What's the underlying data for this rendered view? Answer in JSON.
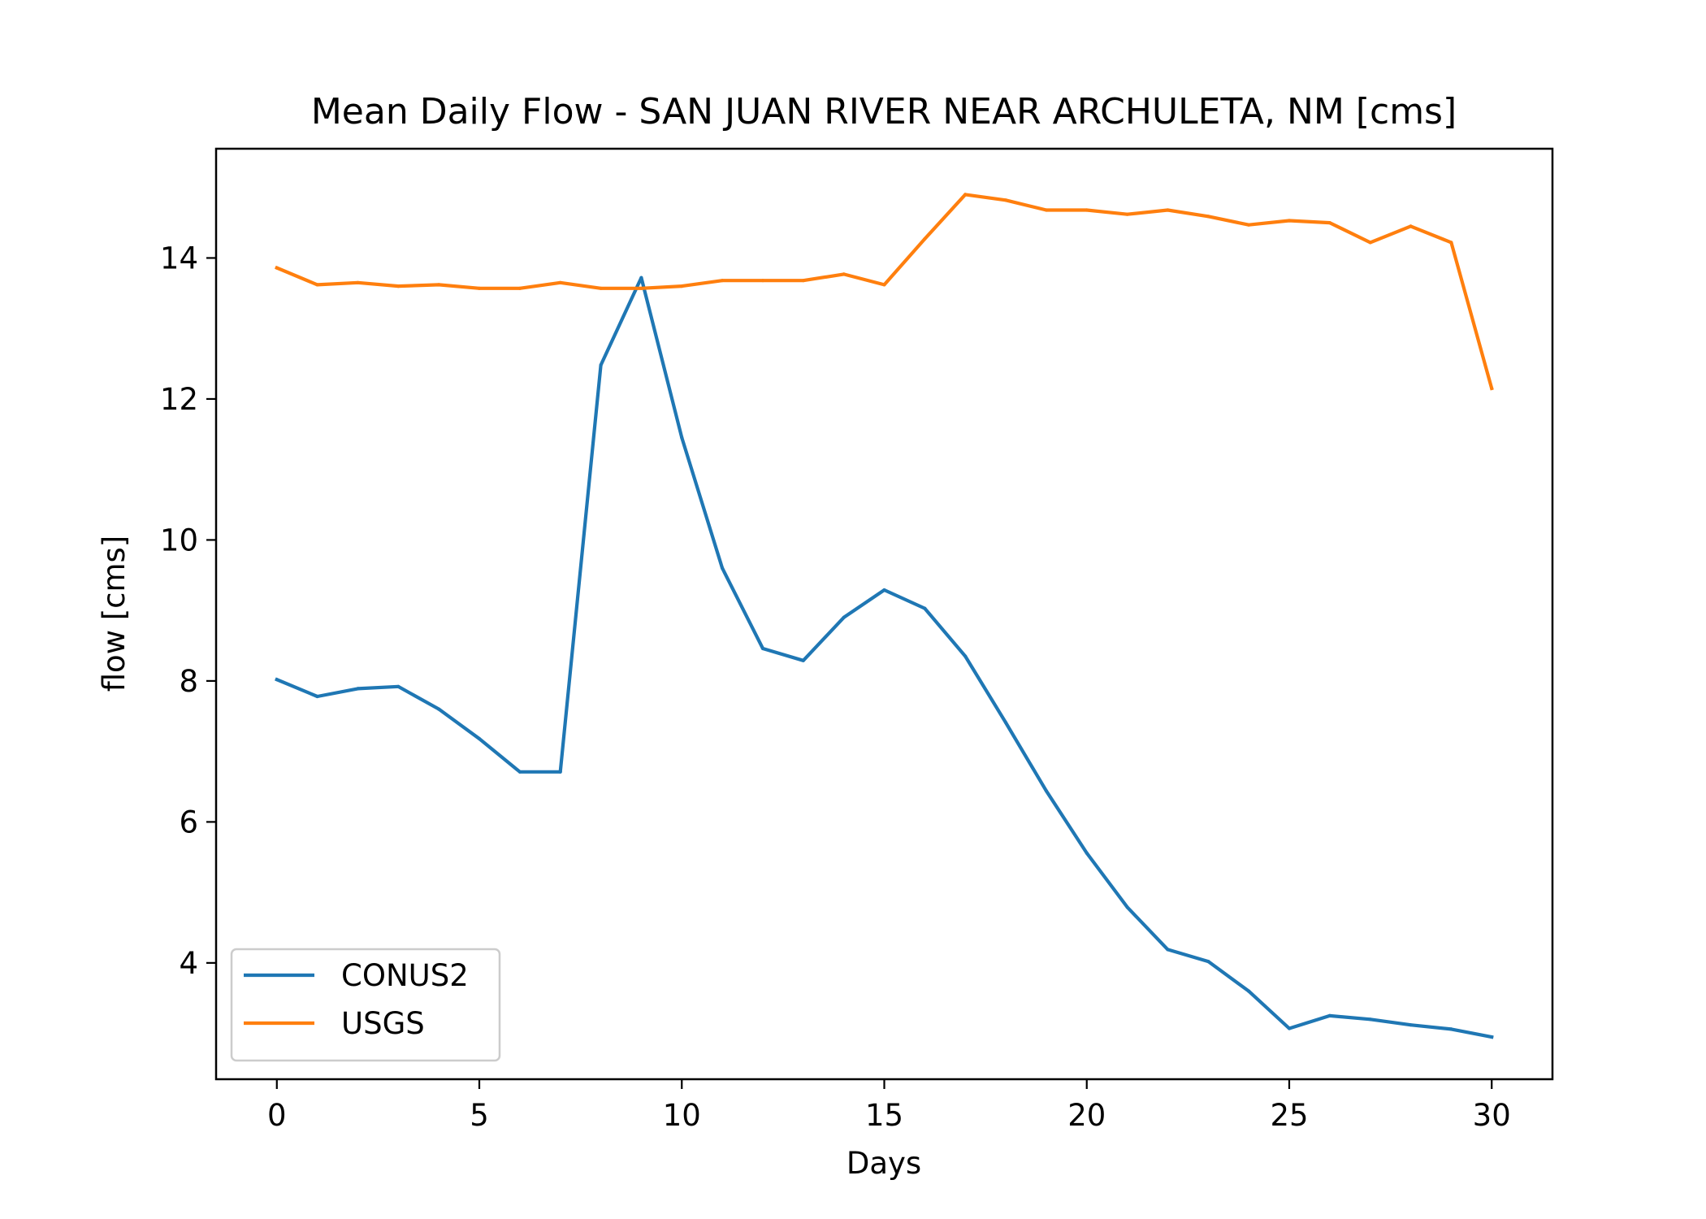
{
  "chart_data": {
    "type": "line",
    "title": "Mean Daily Flow - SAN JUAN RIVER NEAR ARCHULETA, NM [cms]",
    "xlabel": "Days",
    "ylabel": "flow [cms]",
    "xlim": [
      -1.5,
      31.5
    ],
    "ylim": [
      2.35,
      15.55
    ],
    "xticks": [
      0,
      5,
      10,
      15,
      20,
      25,
      30
    ],
    "yticks": [
      4,
      6,
      8,
      10,
      12,
      14
    ],
    "grid": false,
    "legend_position": "lower-left",
    "x": [
      0,
      1,
      2,
      3,
      4,
      5,
      6,
      7,
      8,
      9,
      10,
      11,
      12,
      13,
      14,
      15,
      16,
      17,
      18,
      19,
      20,
      21,
      22,
      23,
      24,
      25,
      26,
      27,
      28,
      29,
      30
    ],
    "series": [
      {
        "name": "CONUS2",
        "color": "#1f77b4",
        "values": [
          8.02,
          7.78,
          7.89,
          7.92,
          7.6,
          7.18,
          6.71,
          6.71,
          12.48,
          13.72,
          11.45,
          9.6,
          8.46,
          8.29,
          8.9,
          9.29,
          9.03,
          8.35,
          7.41,
          6.44,
          5.56,
          4.79,
          4.19,
          4.02,
          3.6,
          3.07,
          3.25,
          3.2,
          3.12,
          3.06,
          2.95
        ]
      },
      {
        "name": "USGS",
        "color": "#ff7f0e",
        "values": [
          13.86,
          13.62,
          13.65,
          13.6,
          13.62,
          13.57,
          13.57,
          13.65,
          13.57,
          13.57,
          13.6,
          13.68,
          13.68,
          13.68,
          13.77,
          13.62,
          14.27,
          14.9,
          14.82,
          14.68,
          14.68,
          14.62,
          14.68,
          14.59,
          14.47,
          14.53,
          14.5,
          14.22,
          14.45,
          14.22,
          12.15
        ]
      }
    ]
  }
}
